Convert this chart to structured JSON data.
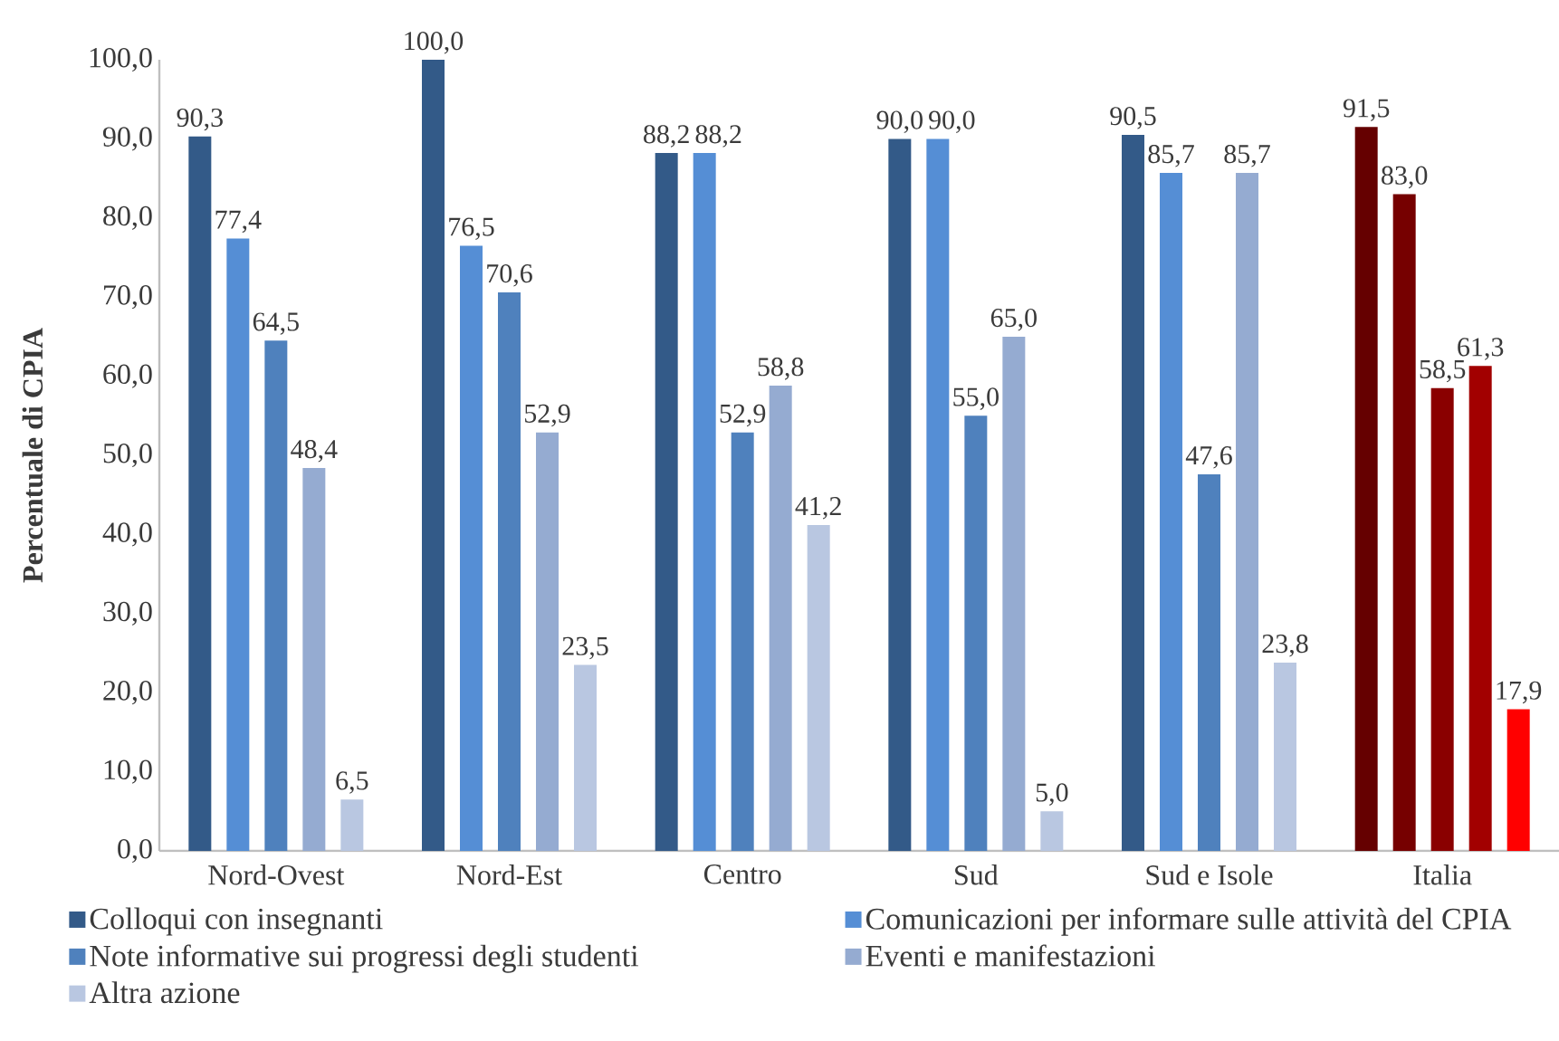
{
  "chart_data": {
    "type": "bar",
    "ylabel": "Percentuale di CPIA",
    "categories": [
      "Nord-Ovest",
      "Nord-Est",
      "Centro",
      "Sud",
      "Sud e Isole",
      "Italia"
    ],
    "series": [
      {
        "name": "Colloqui con insegnanti",
        "color": "#335A88",
        "colors": [
          "#335A88",
          "#335A88",
          "#335A88",
          "#335A88",
          "#335A88",
          "#650000"
        ],
        "values": [
          90.3,
          100.0,
          88.2,
          90.0,
          90.5,
          91.5
        ],
        "value_labels": [
          "90,3",
          "100,0",
          "88,2",
          "90,0",
          "90,5",
          "91,5"
        ]
      },
      {
        "name": "Comunicazioni per informare sulle attività del CPIA",
        "color": "#558ED5",
        "colors": [
          "#558ED5",
          "#558ED5",
          "#558ED5",
          "#558ED5",
          "#558ED5",
          "#760000"
        ],
        "values": [
          77.4,
          76.5,
          88.2,
          90.0,
          85.7,
          83.0
        ],
        "value_labels": [
          "77,4",
          "76,5",
          "88,2",
          "90,0",
          "85,7",
          "83,0"
        ]
      },
      {
        "name": "Note informative sui progressi degli studenti",
        "color": "#4F81BD",
        "colors": [
          "#4F81BD",
          "#4F81BD",
          "#4F81BD",
          "#4F81BD",
          "#4F81BD",
          "#8A0000"
        ],
        "values": [
          64.5,
          70.6,
          52.9,
          55.0,
          47.6,
          58.5
        ],
        "value_labels": [
          "64,5",
          "70,6",
          "52,9",
          "55,0",
          "47,6",
          "58,5"
        ]
      },
      {
        "name": "Eventi e manifestazioni",
        "color": "#95ABD1",
        "colors": [
          "#95ABD1",
          "#95ABD1",
          "#95ABD1",
          "#95ABD1",
          "#95ABD1",
          "#A20000"
        ],
        "values": [
          48.4,
          52.9,
          58.8,
          65.0,
          85.7,
          61.3
        ],
        "value_labels": [
          "48,4",
          "52,9",
          "58,8",
          "65,0",
          "85,7",
          "61,3"
        ]
      },
      {
        "name": "Altra azione",
        "color": "#B9C7E1",
        "colors": [
          "#B9C7E1",
          "#B9C7E1",
          "#B9C7E1",
          "#B9C7E1",
          "#B9C7E1",
          "#FF0000"
        ],
        "values": [
          6.5,
          23.5,
          41.2,
          5.0,
          23.8,
          17.9
        ],
        "value_labels": [
          "6,5",
          "23,5",
          "41,2",
          "5,0",
          "23,8",
          "17,9"
        ]
      }
    ],
    "ylim": [
      0,
      100
    ],
    "yticks": [
      {
        "value": 0,
        "label": "0,0"
      },
      {
        "value": 10,
        "label": "10,0"
      },
      {
        "value": 20,
        "label": "20,0"
      },
      {
        "value": 30,
        "label": "30,0"
      },
      {
        "value": 40,
        "label": "40,0"
      },
      {
        "value": 50,
        "label": "50,0"
      },
      {
        "value": 60,
        "label": "60,0"
      },
      {
        "value": 70,
        "label": "70,0"
      },
      {
        "value": 80,
        "label": "80,0"
      },
      {
        "value": 90,
        "label": "90,0"
      },
      {
        "value": 100,
        "label": "100,0"
      }
    ],
    "legend": "bottom"
  }
}
